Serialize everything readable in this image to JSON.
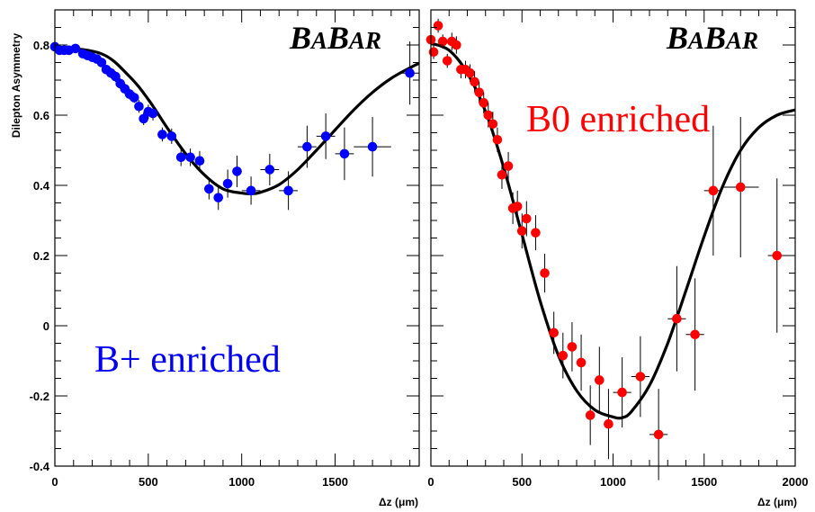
{
  "ylabel": "Dilepton Asymmetry",
  "xlabel": "Δz (μm)",
  "logo": {
    "first_big": "B",
    "first_small": "A",
    "second_big": "B",
    "second_small": "AR"
  },
  "chart_data": [
    {
      "type": "scatter",
      "label": "B+ enriched",
      "label_color": "#0000ee",
      "marker_color": "#0000ff",
      "xlim": [
        0,
        1950
      ],
      "ylim": [
        -0.4,
        0.9
      ],
      "x_ticks": [
        0,
        500,
        1000,
        1500
      ],
      "y_ticks": [
        -0.4,
        -0.2,
        0,
        0.2,
        0.4,
        0.6,
        0.8
      ],
      "y_tick_labels": [
        "-0.4",
        "-0.2",
        "0",
        "0.2",
        "0.4",
        "0.6",
        "0.8"
      ],
      "points": [
        {
          "x": 0,
          "y": 0.795,
          "yerr": 0.012,
          "xerr": 0
        },
        {
          "x": 25,
          "y": 0.785,
          "yerr": 0.012,
          "xerr": 0
        },
        {
          "x": 50,
          "y": 0.785,
          "yerr": 0.012,
          "xerr": 0
        },
        {
          "x": 75,
          "y": 0.785,
          "yerr": 0.012,
          "xerr": 0
        },
        {
          "x": 110,
          "y": 0.79,
          "yerr": 0.012,
          "xerr": 0
        },
        {
          "x": 150,
          "y": 0.775,
          "yerr": 0.012,
          "xerr": 0
        },
        {
          "x": 175,
          "y": 0.77,
          "yerr": 0.012,
          "xerr": 0
        },
        {
          "x": 200,
          "y": 0.765,
          "yerr": 0.012,
          "xerr": 0
        },
        {
          "x": 225,
          "y": 0.76,
          "yerr": 0.012,
          "xerr": 0
        },
        {
          "x": 250,
          "y": 0.75,
          "yerr": 0.012,
          "xerr": 0
        },
        {
          "x": 275,
          "y": 0.73,
          "yerr": 0.012,
          "xerr": 0
        },
        {
          "x": 300,
          "y": 0.72,
          "yerr": 0.015,
          "xerr": 0
        },
        {
          "x": 325,
          "y": 0.71,
          "yerr": 0.015,
          "xerr": 0
        },
        {
          "x": 350,
          "y": 0.69,
          "yerr": 0.015,
          "xerr": 0
        },
        {
          "x": 375,
          "y": 0.675,
          "yerr": 0.015,
          "xerr": 0
        },
        {
          "x": 400,
          "y": 0.66,
          "yerr": 0.015,
          "xerr": 0
        },
        {
          "x": 425,
          "y": 0.65,
          "yerr": 0.015,
          "xerr": 0
        },
        {
          "x": 450,
          "y": 0.625,
          "yerr": 0.018,
          "xerr": 0
        },
        {
          "x": 475,
          "y": 0.59,
          "yerr": 0.018,
          "xerr": 0
        },
        {
          "x": 500,
          "y": 0.61,
          "yerr": 0.02,
          "xerr": 0
        },
        {
          "x": 525,
          "y": 0.605,
          "yerr": 0.02,
          "xerr": 0
        },
        {
          "x": 575,
          "y": 0.545,
          "yerr": 0.02,
          "xerr": 25
        },
        {
          "x": 625,
          "y": 0.54,
          "yerr": 0.022,
          "xerr": 25
        },
        {
          "x": 675,
          "y": 0.48,
          "yerr": 0.025,
          "xerr": 25
        },
        {
          "x": 725,
          "y": 0.48,
          "yerr": 0.025,
          "xerr": 25
        },
        {
          "x": 775,
          "y": 0.47,
          "yerr": 0.028,
          "xerr": 25
        },
        {
          "x": 825,
          "y": 0.39,
          "yerr": 0.03,
          "xerr": 25
        },
        {
          "x": 875,
          "y": 0.365,
          "yerr": 0.035,
          "xerr": 25
        },
        {
          "x": 925,
          "y": 0.405,
          "yerr": 0.04,
          "xerr": 25
        },
        {
          "x": 975,
          "y": 0.44,
          "yerr": 0.045,
          "xerr": 25
        },
        {
          "x": 1050,
          "y": 0.385,
          "yerr": 0.04,
          "xerr": 50
        },
        {
          "x": 1150,
          "y": 0.445,
          "yerr": 0.045,
          "xerr": 50
        },
        {
          "x": 1250,
          "y": 0.385,
          "yerr": 0.055,
          "xerr": 50
        },
        {
          "x": 1350,
          "y": 0.51,
          "yerr": 0.06,
          "xerr": 50
        },
        {
          "x": 1450,
          "y": 0.54,
          "yerr": 0.065,
          "xerr": 50
        },
        {
          "x": 1550,
          "y": 0.49,
          "yerr": 0.075,
          "xerr": 50
        },
        {
          "x": 1700,
          "y": 0.51,
          "yerr": 0.085,
          "xerr": 100
        },
        {
          "x": 1900,
          "y": 0.72,
          "yerr": 0.09,
          "xerr": 50
        }
      ],
      "fit": {
        "x": [
          0,
          250,
          400,
          500,
          600,
          700,
          800,
          900,
          1000,
          1050,
          1100,
          1200,
          1300,
          1400,
          1500,
          1600,
          1700,
          1800,
          1900,
          1950
        ],
        "y": [
          0.795,
          0.775,
          0.71,
          0.645,
          0.565,
          0.49,
          0.43,
          0.39,
          0.378,
          0.376,
          0.38,
          0.402,
          0.445,
          0.5,
          0.558,
          0.615,
          0.665,
          0.705,
          0.735,
          0.748
        ]
      }
    },
    {
      "type": "scatter",
      "label": "B0 enriched",
      "label_color": "#ff0000",
      "marker_color": "#ff0000",
      "xlim": [
        0,
        2000
      ],
      "ylim": [
        -0.4,
        0.9
      ],
      "x_ticks": [
        0,
        500,
        1000,
        1500,
        2000
      ],
      "y_ticks": [
        -0.4,
        -0.2,
        0,
        0.2,
        0.4,
        0.6,
        0.8
      ],
      "y_tick_labels": [],
      "points": [
        {
          "x": 0,
          "y": 0.815,
          "yerr": 0.02,
          "xerr": 0
        },
        {
          "x": 15,
          "y": 0.78,
          "yerr": 0.02,
          "xerr": 0
        },
        {
          "x": 40,
          "y": 0.855,
          "yerr": 0.02,
          "xerr": 0
        },
        {
          "x": 65,
          "y": 0.81,
          "yerr": 0.02,
          "xerr": 0
        },
        {
          "x": 90,
          "y": 0.755,
          "yerr": 0.02,
          "xerr": 0
        },
        {
          "x": 115,
          "y": 0.81,
          "yerr": 0.025,
          "xerr": 0
        },
        {
          "x": 140,
          "y": 0.8,
          "yerr": 0.025,
          "xerr": 0
        },
        {
          "x": 165,
          "y": 0.73,
          "yerr": 0.025,
          "xerr": 0
        },
        {
          "x": 190,
          "y": 0.73,
          "yerr": 0.025,
          "xerr": 0
        },
        {
          "x": 215,
          "y": 0.72,
          "yerr": 0.025,
          "xerr": 0
        },
        {
          "x": 240,
          "y": 0.695,
          "yerr": 0.03,
          "xerr": 0
        },
        {
          "x": 265,
          "y": 0.665,
          "yerr": 0.03,
          "xerr": 0
        },
        {
          "x": 290,
          "y": 0.635,
          "yerr": 0.03,
          "xerr": 0
        },
        {
          "x": 315,
          "y": 0.6,
          "yerr": 0.035,
          "xerr": 0
        },
        {
          "x": 340,
          "y": 0.575,
          "yerr": 0.035,
          "xerr": 0
        },
        {
          "x": 365,
          "y": 0.53,
          "yerr": 0.035,
          "xerr": 0
        },
        {
          "x": 390,
          "y": 0.43,
          "yerr": 0.04,
          "xerr": 0
        },
        {
          "x": 425,
          "y": 0.455,
          "yerr": 0.04,
          "xerr": 0
        },
        {
          "x": 450,
          "y": 0.335,
          "yerr": 0.045,
          "xerr": 0
        },
        {
          "x": 475,
          "y": 0.34,
          "yerr": 0.045,
          "xerr": 0
        },
        {
          "x": 500,
          "y": 0.27,
          "yerr": 0.05,
          "xerr": 0
        },
        {
          "x": 525,
          "y": 0.305,
          "yerr": 0.05,
          "xerr": 0
        },
        {
          "x": 575,
          "y": 0.265,
          "yerr": 0.05,
          "xerr": 25
        },
        {
          "x": 625,
          "y": 0.15,
          "yerr": 0.055,
          "xerr": 25
        },
        {
          "x": 675,
          "y": -0.02,
          "yerr": 0.06,
          "xerr": 25
        },
        {
          "x": 725,
          "y": -0.085,
          "yerr": 0.065,
          "xerr": 25
        },
        {
          "x": 775,
          "y": -0.06,
          "yerr": 0.07,
          "xerr": 25
        },
        {
          "x": 825,
          "y": -0.105,
          "yerr": 0.08,
          "xerr": 25
        },
        {
          "x": 875,
          "y": -0.255,
          "yerr": 0.085,
          "xerr": 25
        },
        {
          "x": 925,
          "y": -0.155,
          "yerr": 0.095,
          "xerr": 25
        },
        {
          "x": 975,
          "y": -0.28,
          "yerr": 0.1,
          "xerr": 25
        },
        {
          "x": 1050,
          "y": -0.19,
          "yerr": 0.1,
          "xerr": 50
        },
        {
          "x": 1150,
          "y": -0.145,
          "yerr": 0.115,
          "xerr": 50
        },
        {
          "x": 1250,
          "y": -0.31,
          "yerr": 0.13,
          "xerr": 50
        },
        {
          "x": 1350,
          "y": 0.02,
          "yerr": 0.15,
          "xerr": 50
        },
        {
          "x": 1450,
          "y": -0.025,
          "yerr": 0.16,
          "xerr": 50
        },
        {
          "x": 1550,
          "y": 0.385,
          "yerr": 0.185,
          "xerr": 50
        },
        {
          "x": 1700,
          "y": 0.395,
          "yerr": 0.2,
          "xerr": 100
        },
        {
          "x": 1900,
          "y": 0.2,
          "yerr": 0.22,
          "xerr": 50
        }
      ],
      "fit": {
        "x": [
          0,
          100,
          200,
          300,
          400,
          500,
          600,
          700,
          800,
          900,
          1000,
          1050,
          1100,
          1200,
          1300,
          1400,
          1500,
          1600,
          1700,
          1800,
          1900,
          2000
        ],
        "y": [
          0.805,
          0.785,
          0.72,
          0.61,
          0.45,
          0.26,
          0.07,
          -0.085,
          -0.185,
          -0.24,
          -0.26,
          -0.262,
          -0.245,
          -0.17,
          -0.05,
          0.1,
          0.255,
          0.395,
          0.5,
          0.565,
          0.6,
          0.615
        ]
      }
    }
  ]
}
